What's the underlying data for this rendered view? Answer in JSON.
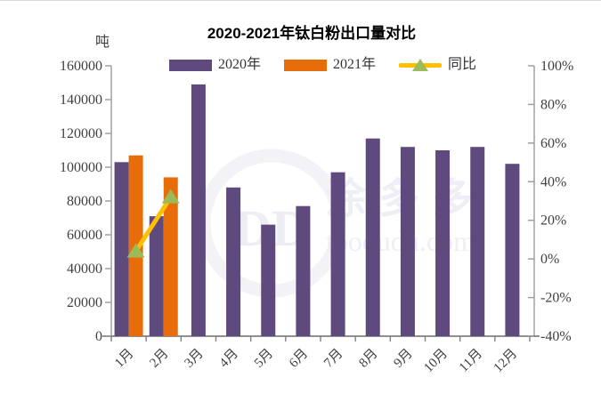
{
  "page": {
    "background": "#ffffff",
    "top_border_color": "#d9d9d9"
  },
  "chart_data": {
    "type": "bar",
    "subtype": "grouped-bar-with-line-overlay",
    "title": "2020-2021年钛白粉出口量对比",
    "unit_label": "吨",
    "categories": [
      "1月",
      "2月",
      "3月",
      "4月",
      "5月",
      "6月",
      "7月",
      "8月",
      "9月",
      "10月",
      "11月",
      "12月"
    ],
    "series": [
      {
        "name": "2020年",
        "type": "bar",
        "axis": "left",
        "color": "#5E4A7D",
        "values": [
          103000,
          71000,
          149000,
          88000,
          66000,
          77000,
          97000,
          117000,
          112000,
          110000,
          112000,
          102000
        ]
      },
      {
        "name": "2021年",
        "type": "bar",
        "axis": "left",
        "color": "#E66D0A",
        "values": [
          107000,
          94000,
          null,
          null,
          null,
          null,
          null,
          null,
          null,
          null,
          null,
          null
        ]
      },
      {
        "name": "同比",
        "type": "line",
        "axis": "right",
        "color": "#FFC000",
        "marker": "triangle",
        "marker_color": "#9BBB59",
        "values_pct": [
          4,
          32,
          null,
          null,
          null,
          null,
          null,
          null,
          null,
          null,
          null,
          null
        ]
      }
    ],
    "left_axis": {
      "min": 0,
      "max": 160000,
      "step": 20000,
      "tick_labels": [
        "160000",
        "140000",
        "120000",
        "100000",
        "80000",
        "60000",
        "40000",
        "20000",
        "0"
      ]
    },
    "right_axis": {
      "min": -40,
      "max": 100,
      "step": 20,
      "tick_labels": [
        "100%",
        "80%",
        "60%",
        "40%",
        "20%",
        "0%",
        "-20%",
        "-40%"
      ]
    },
    "grid": "off",
    "legend_position": "top-center"
  },
  "legend": {
    "items": [
      {
        "label": "2020年",
        "swatch": "purple-rect"
      },
      {
        "label": "2021年",
        "swatch": "orange-rect"
      },
      {
        "label": "同比",
        "swatch": "yellow-line-green-triangle"
      }
    ]
  },
  "watermark": {
    "logo_text": "DD",
    "cn_text": "涂多多",
    "url_text": "toodudu.com"
  },
  "colors": {
    "bar_2020": "#5E4A7D",
    "bar_2021": "#E66D0A",
    "line_yoy": "#FFC000",
    "marker_yoy": "#9BBB59",
    "axis_line": "#9a9a9a",
    "tick_text": "#404040",
    "watermark": "#ededf4"
  }
}
